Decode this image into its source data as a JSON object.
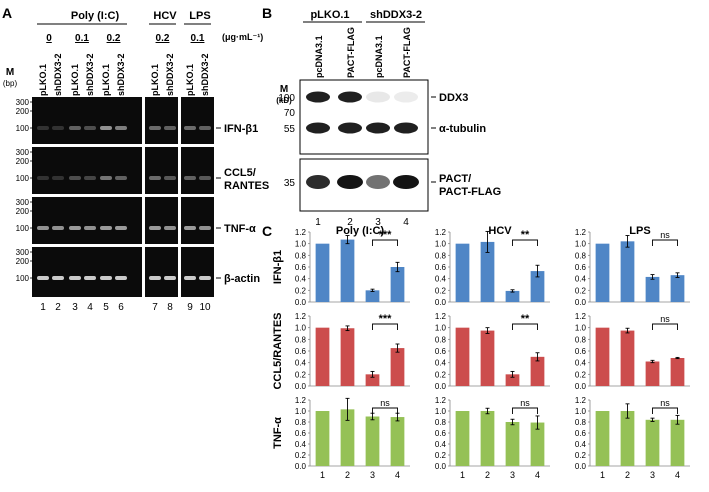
{
  "panelA": {
    "letter": "A",
    "groups": [
      {
        "label": "Poly (I:C)"
      },
      {
        "label": "HCV"
      },
      {
        "label": "LPS"
      }
    ],
    "doses": [
      "0",
      "0.1",
      "0.2",
      "0.2",
      "0.1"
    ],
    "unit": "(μg·mL⁻¹)",
    "marker_label": "M",
    "marker_unit": "(bp)",
    "lane_labels": [
      "pLKO.1",
      "shDDX3-2",
      "pLKO.1",
      "shDDX3-2",
      "pLKO.1",
      "shDDX3-2",
      "pLKO.1",
      "shDDX3-2",
      "pLKO.1",
      "shDDX3-2"
    ],
    "lane_numbers": [
      "1",
      "2",
      "3",
      "4",
      "5",
      "6",
      "7",
      "8",
      "9",
      "10"
    ],
    "rows": [
      {
        "label": "IFN-β1",
        "label2": "",
        "ticks": [
          "300",
          "200",
          "100"
        ],
        "bands": [
          0.05,
          0.05,
          0.3,
          0.2,
          0.55,
          0.45,
          0.35,
          0.3,
          0.35,
          0.3
        ]
      },
      {
        "label": "CCL5/",
        "label2": "RANTES",
        "ticks": [
          "300",
          "200",
          "100"
        ],
        "bands": [
          0.05,
          0.05,
          0.2,
          0.15,
          0.4,
          0.3,
          0.35,
          0.25,
          0.3,
          0.25
        ]
      },
      {
        "label": "TNF-α",
        "label2": "",
        "ticks": [
          "300",
          "200",
          "100"
        ],
        "bands": [
          0.55,
          0.55,
          0.6,
          0.55,
          0.6,
          0.6,
          0.6,
          0.55,
          0.6,
          0.55
        ]
      },
      {
        "label": "β-actin",
        "label2": "",
        "ticks": [
          "300",
          "200",
          "100"
        ],
        "bands": [
          0.85,
          0.85,
          0.85,
          0.85,
          0.85,
          0.85,
          0.85,
          0.85,
          0.85,
          0.85
        ]
      }
    ]
  },
  "panelB": {
    "letter": "B",
    "groups": [
      "pLKO.1",
      "shDDX3-2"
    ],
    "lanes": [
      "pcDNA3.1",
      "PACT-FLAG",
      "pcDNA3.1",
      "PACT-FLAG"
    ],
    "lane_numbers": [
      "1",
      "2",
      "3",
      "4"
    ],
    "marker_label": "M",
    "marker_unit": "(kD)",
    "blot1_ticks": [
      "100",
      "70",
      "55"
    ],
    "blot2_ticks": [
      "35"
    ],
    "bands": [
      {
        "label": "DDX3",
        "label2": "",
        "intensity": [
          0.95,
          0.95,
          0.1,
          0.08
        ]
      },
      {
        "label": "α-tubulin",
        "label2": "",
        "intensity": [
          0.95,
          0.95,
          0.95,
          0.95
        ]
      },
      {
        "label": "PACT/",
        "label2": "PACT-FLAG",
        "intensity": [
          0.9,
          1.0,
          0.6,
          1.0
        ]
      }
    ]
  },
  "panelC": {
    "letter": "C",
    "columns": [
      "Poly (I:C)",
      "HCV",
      "LPS"
    ],
    "rows": [
      "IFN-β1",
      "CCL5/RANTES",
      "TNF-α"
    ],
    "colors": [
      "#4f86c6",
      "#cc4d4d",
      "#95c156"
    ]
  },
  "chart_data": [
    {
      "type": "bar",
      "panel": "C",
      "column": "Poly (I:C)",
      "ylabel": "IFN-β1",
      "categories": [
        "1",
        "2",
        "3",
        "4"
      ],
      "values": [
        1.0,
        1.07,
        0.2,
        0.6
      ],
      "errors": [
        0,
        0.07,
        0.02,
        0.08
      ],
      "ylim": [
        0,
        1.2
      ],
      "yticks": [
        "0.0",
        "0.2",
        "0.4",
        "0.6",
        "0.8",
        "1.0",
        "1.2"
      ],
      "significance": {
        "from": 3,
        "to": 4,
        "label": "***"
      }
    },
    {
      "type": "bar",
      "panel": "C",
      "column": "HCV",
      "ylabel": "IFN-β1",
      "categories": [
        "1",
        "2",
        "3",
        "4"
      ],
      "values": [
        1.0,
        1.03,
        0.19,
        0.53
      ],
      "errors": [
        0,
        0.18,
        0.02,
        0.1
      ],
      "ylim": [
        0,
        1.2
      ],
      "yticks": [
        "0.0",
        "0.2",
        "0.4",
        "0.6",
        "0.8",
        "1.0",
        "1.2"
      ],
      "significance": {
        "from": 3,
        "to": 4,
        "label": "**"
      }
    },
    {
      "type": "bar",
      "panel": "C",
      "column": "LPS",
      "ylabel": "IFN-β1",
      "categories": [
        "1",
        "2",
        "3",
        "4"
      ],
      "values": [
        1.0,
        1.04,
        0.43,
        0.46
      ],
      "errors": [
        0,
        0.1,
        0.04,
        0.04
      ],
      "ylim": [
        0,
        1.2
      ],
      "yticks": [
        "0.0",
        "0.2",
        "0.4",
        "0.6",
        "0.8",
        "1.0",
        "1.2"
      ],
      "significance": {
        "from": 3,
        "to": 4,
        "label": "ns"
      }
    },
    {
      "type": "bar",
      "panel": "C",
      "column": "Poly (I:C)",
      "ylabel": "CCL5/RANTES",
      "categories": [
        "1",
        "2",
        "3",
        "4"
      ],
      "values": [
        1.0,
        0.99,
        0.2,
        0.65
      ],
      "errors": [
        0,
        0.04,
        0.05,
        0.07
      ],
      "ylim": [
        0,
        1.2
      ],
      "yticks": [
        "0.0",
        "0.2",
        "0.4",
        "0.6",
        "0.8",
        "1.0",
        "1.2"
      ],
      "significance": {
        "from": 3,
        "to": 4,
        "label": "***"
      }
    },
    {
      "type": "bar",
      "panel": "C",
      "column": "HCV",
      "ylabel": "CCL5/RANTES",
      "categories": [
        "1",
        "2",
        "3",
        "4"
      ],
      "values": [
        1.0,
        0.95,
        0.2,
        0.5
      ],
      "errors": [
        0,
        0.05,
        0.05,
        0.07
      ],
      "ylim": [
        0,
        1.2
      ],
      "yticks": [
        "0.0",
        "0.2",
        "0.4",
        "0.6",
        "0.8",
        "1.0",
        "1.2"
      ],
      "significance": {
        "from": 3,
        "to": 4,
        "label": "**"
      }
    },
    {
      "type": "bar",
      "panel": "C",
      "column": "LPS",
      "ylabel": "CCL5/RANTES",
      "categories": [
        "1",
        "2",
        "3",
        "4"
      ],
      "values": [
        1.0,
        0.95,
        0.42,
        0.48
      ],
      "errors": [
        0,
        0.04,
        0.02,
        0.01
      ],
      "ylim": [
        0,
        1.2
      ],
      "yticks": [
        "0.0",
        "0.2",
        "0.4",
        "0.6",
        "0.8",
        "1.0",
        "1.2"
      ],
      "significance": {
        "from": 3,
        "to": 4,
        "label": "ns"
      }
    },
    {
      "type": "bar",
      "panel": "C",
      "column": "Poly (I:C)",
      "ylabel": "TNF-α",
      "categories": [
        "1",
        "2",
        "3",
        "4"
      ],
      "values": [
        1.0,
        1.03,
        0.9,
        0.89
      ],
      "errors": [
        0,
        0.2,
        0.06,
        0.07
      ],
      "ylim": [
        0,
        1.2
      ],
      "yticks": [
        "0.0",
        "0.2",
        "0.4",
        "0.6",
        "0.8",
        "1.0",
        "1.2"
      ],
      "significance": {
        "from": 3,
        "to": 4,
        "label": "ns"
      }
    },
    {
      "type": "bar",
      "panel": "C",
      "column": "HCV",
      "ylabel": "TNF-α",
      "categories": [
        "1",
        "2",
        "3",
        "4"
      ],
      "values": [
        1.0,
        1.0,
        0.8,
        0.79
      ],
      "errors": [
        0,
        0.05,
        0.05,
        0.12
      ],
      "ylim": [
        0,
        1.2
      ],
      "yticks": [
        "0.0",
        "0.2",
        "0.4",
        "0.6",
        "0.8",
        "1.0",
        "1.2"
      ],
      "significance": {
        "from": 3,
        "to": 4,
        "label": "ns"
      }
    },
    {
      "type": "bar",
      "panel": "C",
      "column": "LPS",
      "ylabel": "TNF-α",
      "categories": [
        "1",
        "2",
        "3",
        "4"
      ],
      "values": [
        1.0,
        1.0,
        0.84,
        0.84
      ],
      "errors": [
        0,
        0.13,
        0.03,
        0.08
      ],
      "ylim": [
        0,
        1.2
      ],
      "yticks": [
        "0.0",
        "0.2",
        "0.4",
        "0.6",
        "0.8",
        "1.0",
        "1.2"
      ],
      "significance": {
        "from": 3,
        "to": 4,
        "label": "ns"
      }
    }
  ]
}
